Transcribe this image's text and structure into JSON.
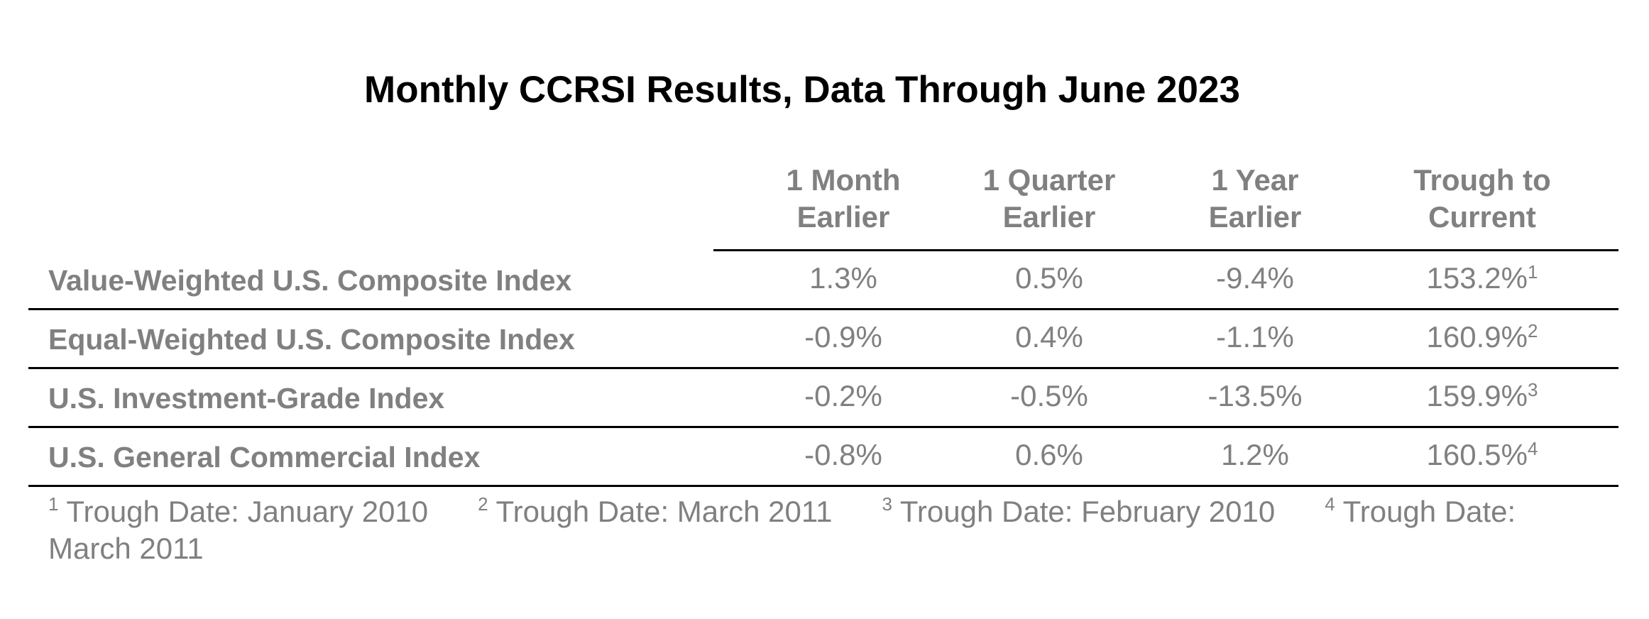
{
  "title": "Monthly CCRSI Results, Data Through June 2023",
  "table": {
    "columns": [
      {
        "line1": "1 Month",
        "line2": "Earlier"
      },
      {
        "line1": "1 Quarter",
        "line2": "Earlier"
      },
      {
        "line1": "1 Year",
        "line2": "Earlier"
      },
      {
        "line1": "Trough to",
        "line2": "Current"
      }
    ],
    "rows": [
      {
        "label": "Value-Weighted U.S. Composite Index",
        "month": "1.3%",
        "quarter": "0.5%",
        "year": "-9.4%",
        "trough": "153.2%",
        "footnote": "1"
      },
      {
        "label": "Equal-Weighted U.S. Composite Index",
        "month": "-0.9%",
        "quarter": "0.4%",
        "year": "-1.1%",
        "trough": "160.9%",
        "footnote": "2"
      },
      {
        "label": "U.S. Investment-Grade Index",
        "month": "-0.2%",
        "quarter": "-0.5%",
        "year": "-13.5%",
        "trough": "159.9%",
        "footnote": "3"
      },
      {
        "label": "U.S. General Commercial Index",
        "month": "-0.8%",
        "quarter": "0.6%",
        "year": "1.2%",
        "trough": "160.5%",
        "footnote": "4"
      }
    ]
  },
  "notes": [
    {
      "mark": "1",
      "text": " Trough Date: January 2010"
    },
    {
      "mark": "2",
      "text": " Trough Date: March 2011"
    },
    {
      "mark": "3",
      "text": " Trough Date: February 2010"
    },
    {
      "mark": "4",
      "text": " Trough Date: March 2011"
    }
  ]
}
